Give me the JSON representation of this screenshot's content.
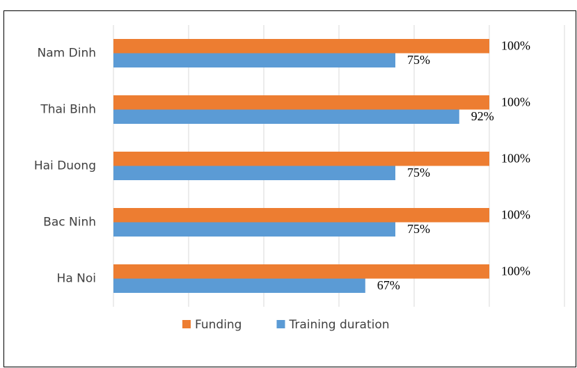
{
  "chart_data": {
    "type": "bar",
    "orientation": "horizontal",
    "categories": [
      "Nam Dinh",
      "Thai Binh",
      "Hai Duong",
      "Bac Ninh",
      "Ha Noi"
    ],
    "series": [
      {
        "name": "Funding",
        "color": "#ed7d31",
        "values": [
          100,
          100,
          100,
          100,
          100
        ],
        "value_labels": [
          "100%",
          "100%",
          "100%",
          "100%",
          "100%"
        ]
      },
      {
        "name": "Training duration",
        "color": "#5b9bd5",
        "values": [
          75,
          92,
          75,
          75,
          67
        ],
        "value_labels": [
          "75%",
          "92%",
          "75%",
          "75%",
          "67%"
        ]
      }
    ],
    "xlim": [
      0,
      120
    ],
    "xticks": [
      0,
      20,
      40,
      60,
      80,
      100,
      120
    ],
    "grid": true,
    "legend": "bottom"
  }
}
